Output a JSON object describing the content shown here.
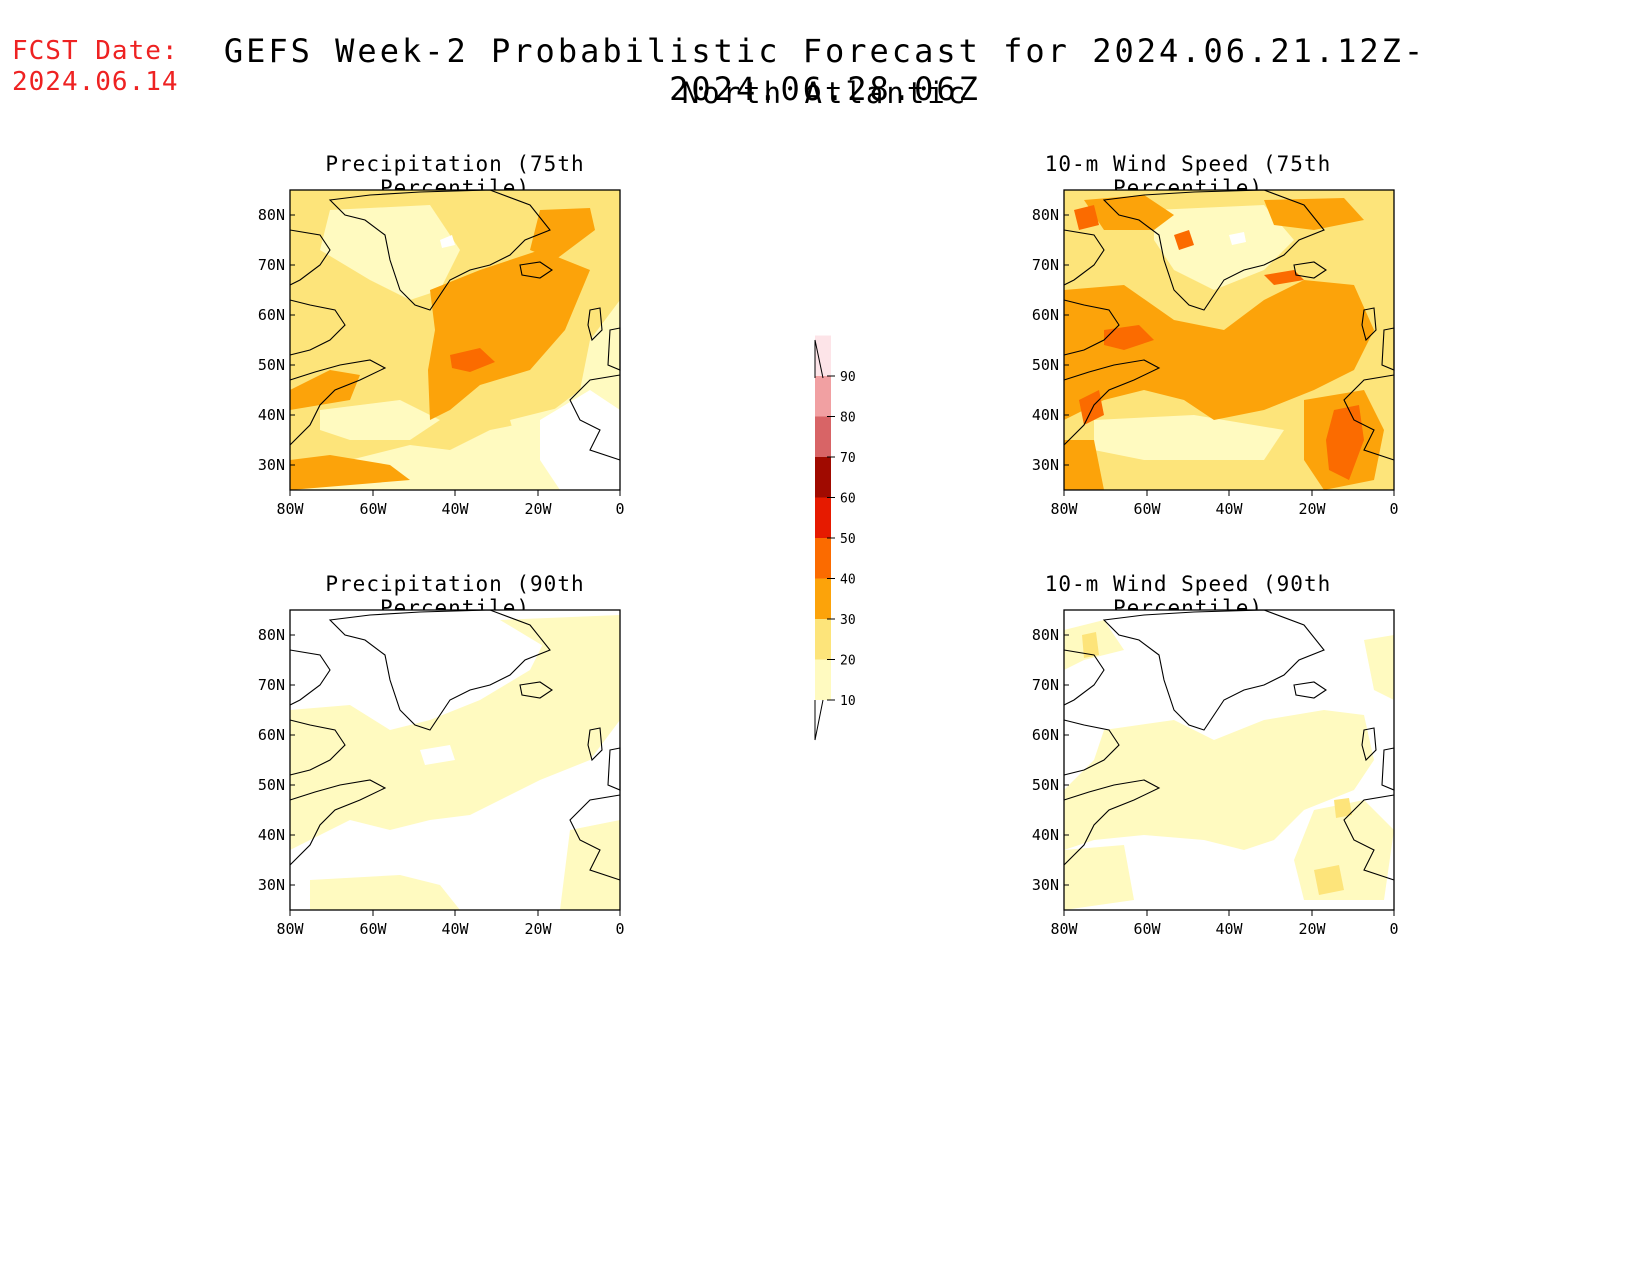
{
  "header": {
    "fcst_label": "FCST Date:",
    "fcst_date": "2024.06.14",
    "title": "GEFS Week-2 Probabilistic Forecast for 2024.06.21.12Z-2024.06.28.06Z",
    "subtitle": "North Atlantic"
  },
  "axes": {
    "lat_labels": [
      "80N",
      "70N",
      "60N",
      "50N",
      "40N",
      "30N"
    ],
    "lon_labels": [
      "80W",
      "60W",
      "40W",
      "20W",
      "0"
    ]
  },
  "panels": [
    {
      "id": "precip75",
      "title": "Precipitation (75th Percentile)",
      "dominant_level": "20-30",
      "max_level": "40-50"
    },
    {
      "id": "wind75",
      "title": "10-m Wind Speed (75th Percentile)",
      "dominant_level": "30-40",
      "max_level": "40-50"
    },
    {
      "id": "precip90",
      "title": "Precipitation (90th Percentile)",
      "dominant_level": "10-20",
      "max_level": "10-20"
    },
    {
      "id": "wind90",
      "title": "10-m Wind Speed (90th Percentile)",
      "dominant_level": "10-20",
      "max_level": "20-30"
    }
  ],
  "colorbar": {
    "levels": [
      "10",
      "20",
      "30",
      "40",
      "50",
      "60",
      "70",
      "80",
      "90"
    ],
    "colors": [
      "#fffac0",
      "#fde47a",
      "#fca30a",
      "#fb6b00",
      "#e61a00",
      "#a00a00",
      "#d86466",
      "#f1a0a2",
      "#fde4e8"
    ]
  },
  "palette": {
    "none": "#ffffff",
    "c10": "#fffac0",
    "c20": "#fde47a",
    "c30": "#fca30a",
    "c40": "#fb6b00",
    "title_red": "#ee2222"
  }
}
